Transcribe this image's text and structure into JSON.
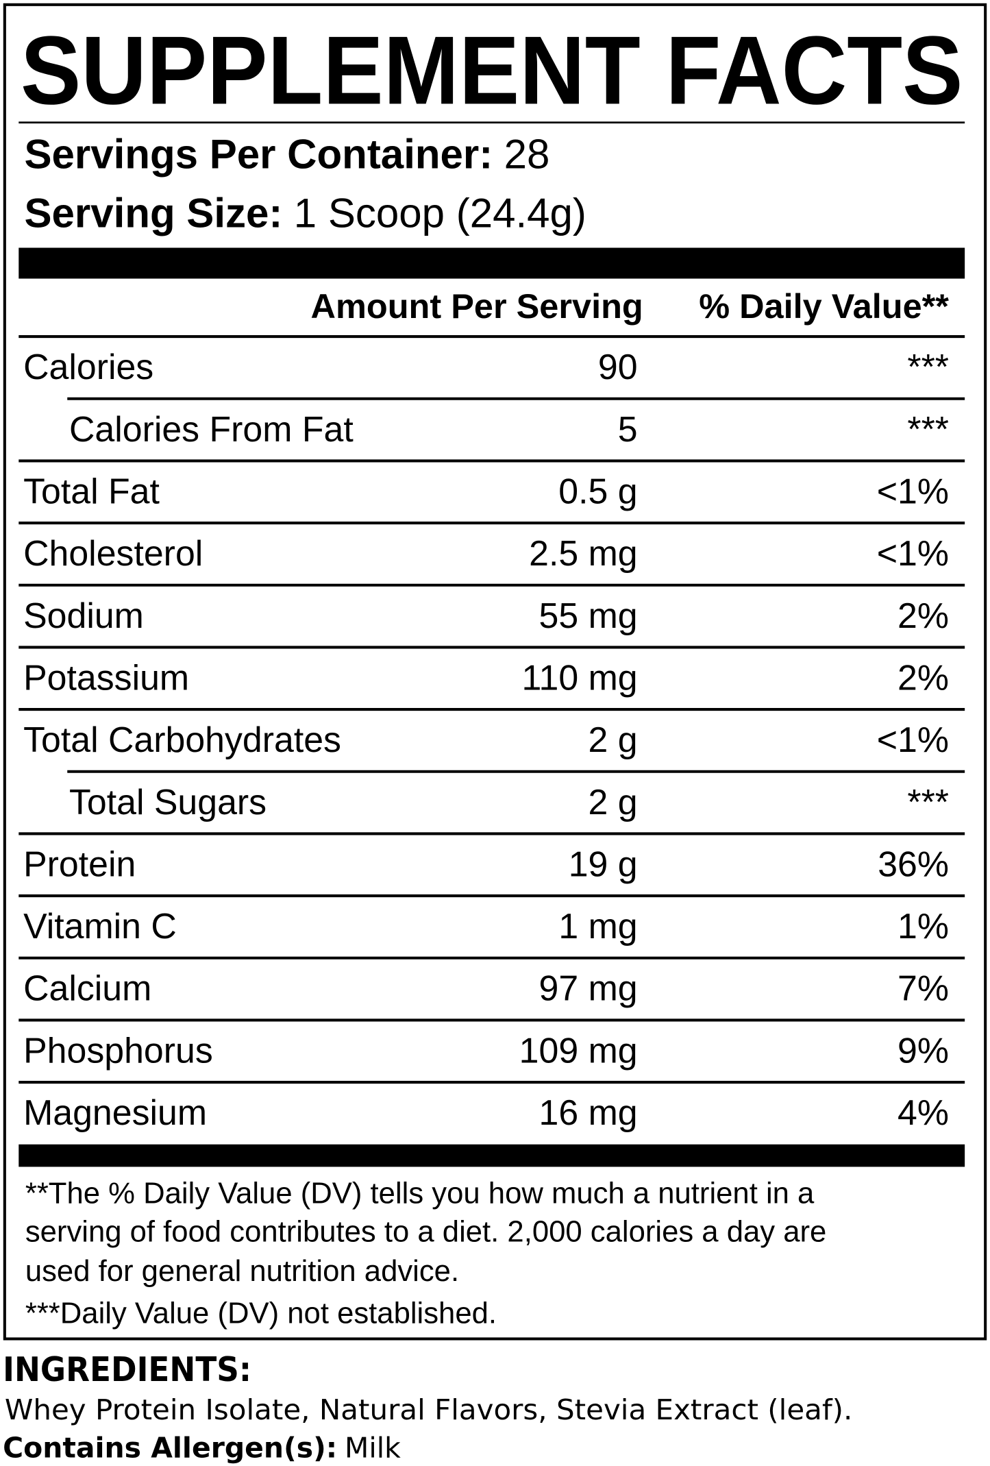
{
  "header": {
    "title": "SUPPLEMENT FACTS",
    "servings_per_container": {
      "label": "Servings Per Container:",
      "value": "28"
    },
    "serving_size": {
      "label": "Serving Size:",
      "value": "1 Scoop (24.4g)"
    }
  },
  "table": {
    "columns": [
      "Amount Per Serving",
      "% Daily Value**"
    ],
    "rows": [
      {
        "name": "Calories",
        "amount": "90",
        "dv": "***"
      },
      {
        "name": "Calories From Fat",
        "amount": "5",
        "dv": "***",
        "indent": true
      },
      {
        "name": "Total Fat",
        "amount": "0.5 g",
        "dv": "<1%"
      },
      {
        "name": "Cholesterol",
        "amount": "2.5 mg",
        "dv": "<1%"
      },
      {
        "name": "Sodium",
        "amount": "55 mg",
        "dv": "2%"
      },
      {
        "name": "Potassium",
        "amount": "110 mg",
        "dv": "2%"
      },
      {
        "name": "Total Carbohydrates",
        "amount": "2 g",
        "dv": "<1%"
      },
      {
        "name": "Total Sugars",
        "amount": "2 g",
        "dv": "***",
        "indent": true
      },
      {
        "name": "Protein",
        "amount": "19 g",
        "dv": "36%"
      },
      {
        "name": "Vitamin C",
        "amount": "1 mg",
        "dv": "1%"
      },
      {
        "name": "Calcium",
        "amount": "97 mg",
        "dv": "7%"
      },
      {
        "name": "Phosphorus",
        "amount": "109 mg",
        "dv": "9%"
      },
      {
        "name": "Magnesium",
        "amount": "16 mg",
        "dv": "4%"
      }
    ]
  },
  "footnotes": [
    "**The % Daily Value (DV) tells you how much a nutrient in a",
    "serving of food contributes to a diet. 2,000 calories a day are",
    "used for general nutrition advice.",
    "***Daily Value (DV) not established."
  ],
  "ingredients": {
    "title": "INGREDIENTS:",
    "text": "Whey Protein Isolate, Natural Flavors, Stevia Extract (leaf).",
    "allergen_label": "Contains Allergen(s):",
    "allergen_value": "Milk"
  }
}
